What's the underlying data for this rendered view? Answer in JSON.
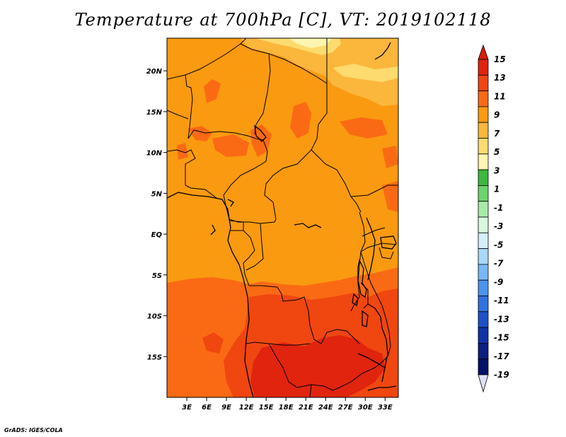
{
  "title": "Temperature at 700hPa [C], VT: 2019102118",
  "credit": "GrADS: IGES/COLA",
  "map": {
    "lon_range": [
      0,
      35
    ],
    "lat_range": [
      -20,
      24
    ],
    "lat_ticks": [
      {
        "value": 20,
        "label": "20N"
      },
      {
        "value": 15,
        "label": "15N"
      },
      {
        "value": 10,
        "label": "10N"
      },
      {
        "value": 5,
        "label": "5N"
      },
      {
        "value": 0,
        "label": "EQ"
      },
      {
        "value": -5,
        "label": "5S"
      },
      {
        "value": -10,
        "label": "10S"
      },
      {
        "value": -15,
        "label": "15S"
      }
    ],
    "lon_ticks": [
      {
        "value": 3,
        "label": "3E"
      },
      {
        "value": 6,
        "label": "6E"
      },
      {
        "value": 9,
        "label": "9E"
      },
      {
        "value": 12,
        "label": "12E"
      },
      {
        "value": 15,
        "label": "15E"
      },
      {
        "value": 18,
        "label": "18E"
      },
      {
        "value": 21,
        "label": "21E"
      },
      {
        "value": 24,
        "label": "24E"
      },
      {
        "value": 27,
        "label": "27E"
      },
      {
        "value": 30,
        "label": "30E"
      },
      {
        "value": 33,
        "label": "33E"
      }
    ]
  },
  "colorbar": {
    "labels": [
      "15",
      "13",
      "11",
      "9",
      "7",
      "5",
      "3",
      "1",
      "-1",
      "-3",
      "-5",
      "-7",
      "-9",
      "-11",
      "-13",
      "-15",
      "-17",
      "-19"
    ],
    "colors": [
      "#e0240e",
      "#f04610",
      "#fa6a14",
      "#fa9a10",
      "#fbb63c",
      "#fddb6e",
      "#fdf5b0",
      "#3ab93c",
      "#6bd46b",
      "#a6eba6",
      "#d9f7dc",
      "#d5eefa",
      "#a8d8fa",
      "#78b8f8",
      "#4a94f2",
      "#2f72e0",
      "#1c52c8",
      "#0e34a8",
      "#0a1f80",
      "#06106a"
    ],
    "top_color": "#d81e0c",
    "bottom_color": "#dde0f6"
  }
}
